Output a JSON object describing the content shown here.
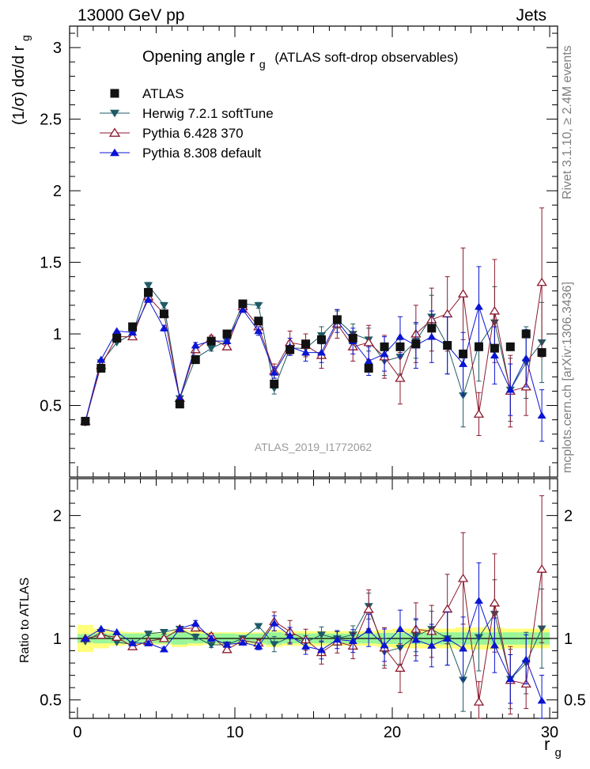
{
  "header": {
    "left": "13000 GeV pp",
    "right": "Jets",
    "side_top": "Rivet 3.1.10, ≥ 2.4M events",
    "side_bottom": "mcplots.cern.ch [arXiv:1306.3436]",
    "watermark": "ATLAS_2019_I1772062"
  },
  "chart_data": {
    "type": "scatter",
    "title_main": "Opening angle r",
    "title_sub": "g",
    "title_rest": "(ATLAS soft-drop observables)",
    "ylabel_main": "(1/σ) dσ/d r",
    "ylabel_sub": "g",
    "ratio_ylabel": "Ratio to ATLAS",
    "xlabel_main": "r",
    "xlabel_sub": "g",
    "xlim": [
      -0.5,
      30.5
    ],
    "ylim": [
      0,
      3.15
    ],
    "ratio_ylim": [
      0.35,
      2.3
    ],
    "x_ticks": [
      "0",
      "10",
      "20",
      "30"
    ],
    "y_ticks": [
      "0.5",
      "1",
      "1.5",
      "2",
      "2.5",
      "3"
    ],
    "ratio_ticks": [
      "0.5",
      "1",
      "2"
    ],
    "x": [
      0.5,
      1.5,
      2.5,
      3.5,
      4.5,
      5.5,
      6.5,
      7.5,
      8.5,
      9.5,
      10.5,
      11.5,
      12.5,
      13.5,
      14.5,
      15.5,
      16.5,
      17.5,
      18.5,
      19.5,
      20.5,
      21.5,
      22.5,
      23.5,
      24.5,
      25.5,
      26.5,
      27.5,
      28.5,
      29.5
    ],
    "data": {
      "name": "ATLAS",
      "values": [
        0.39,
        0.76,
        0.97,
        1.05,
        1.29,
        1.14,
        0.51,
        0.82,
        0.95,
        1.0,
        1.21,
        1.09,
        0.65,
        0.89,
        0.93,
        0.96,
        1.1,
        0.97,
        0.76,
        0.91,
        0.91,
        0.93,
        1.04,
        0.92,
        0.86,
        0.91,
        0.9,
        0.91,
        1.0,
        0.87
      ],
      "band_inner": [
        0.035,
        0.04,
        0.04,
        0.04,
        0.04,
        0.04,
        0.05,
        0.04,
        0.04,
        0.04,
        0.035,
        0.04,
        0.05,
        0.04,
        0.04,
        0.04,
        0.04,
        0.04,
        0.04,
        0.045,
        0.045,
        0.045,
        0.045,
        0.05,
        0.05,
        0.05,
        0.05,
        0.05,
        0.05,
        0.05
      ],
      "band_outer": [
        0.11,
        0.08,
        0.06,
        0.05,
        0.05,
        0.05,
        0.07,
        0.06,
        0.05,
        0.05,
        0.05,
        0.05,
        0.07,
        0.06,
        0.06,
        0.06,
        0.06,
        0.06,
        0.06,
        0.07,
        0.08,
        0.08,
        0.08,
        0.08,
        0.09,
        0.09,
        0.09,
        0.08,
        0.08,
        0.08
      ]
    },
    "series": [
      {
        "name": "Herwig 7.2.1 softTune",
        "color": "#1f5a66",
        "marker": "triangle-down",
        "values": [
          0.38,
          0.8,
          0.94,
          1.0,
          1.34,
          1.2,
          0.55,
          0.83,
          0.9,
          0.95,
          1.21,
          1.2,
          0.62,
          0.9,
          0.9,
          0.99,
          1.1,
          1.0,
          0.96,
          0.81,
          0.84,
          0.95,
          1.12,
          0.92,
          0.57,
          0.92,
          1.08,
          0.61,
          0.8,
          0.94
        ],
        "errors": [
          0.01,
          0.015,
          0.015,
          0.015,
          0.02,
          0.02,
          0.015,
          0.02,
          0.02,
          0.02,
          0.02,
          0.02,
          0.04,
          0.05,
          0.05,
          0.06,
          0.06,
          0.07,
          0.08,
          0.1,
          0.12,
          0.12,
          0.15,
          0.2,
          0.22,
          0.25,
          0.25,
          0.22,
          0.25,
          0.28
        ]
      },
      {
        "name": "Pythia 6.428 370",
        "color": "#8b1a2e",
        "marker": "triangle-up-open",
        "values": [
          0.39,
          0.78,
          0.98,
          0.98,
          1.26,
          1.14,
          0.55,
          0.89,
          0.97,
          0.91,
          1.19,
          1.05,
          0.74,
          0.94,
          0.92,
          0.85,
          1.07,
          0.91,
          0.94,
          0.84,
          0.69,
          1.0,
          1.1,
          1.14,
          1.28,
          0.44,
          1.16,
          0.6,
          0.63,
          1.36
        ],
        "errors": [
          0.01,
          0.015,
          0.015,
          0.015,
          0.02,
          0.02,
          0.015,
          0.02,
          0.02,
          0.02,
          0.02,
          0.03,
          0.05,
          0.08,
          0.08,
          0.09,
          0.1,
          0.1,
          0.12,
          0.15,
          0.18,
          0.2,
          0.22,
          0.26,
          0.32,
          0.15,
          0.36,
          0.25,
          0.2,
          0.52
        ]
      },
      {
        "name": "Pythia 8.308 default",
        "color": "#0a14d2",
        "marker": "triangle-up",
        "values": [
          0.39,
          0.82,
          1.02,
          1.01,
          1.24,
          1.04,
          0.55,
          0.92,
          0.95,
          0.95,
          1.17,
          1.02,
          0.73,
          0.91,
          0.87,
          0.87,
          1.09,
          0.95,
          0.81,
          0.86,
          0.98,
          0.92,
          0.98,
          0.92,
          0.79,
          1.19,
          0.85,
          0.61,
          0.83,
          0.43
        ],
        "errors": [
          0.01,
          0.015,
          0.015,
          0.015,
          0.02,
          0.02,
          0.015,
          0.02,
          0.02,
          0.02,
          0.02,
          0.03,
          0.04,
          0.06,
          0.06,
          0.07,
          0.08,
          0.09,
          0.1,
          0.12,
          0.14,
          0.16,
          0.18,
          0.2,
          0.22,
          0.28,
          0.2,
          0.18,
          0.2,
          0.18
        ]
      }
    ],
    "legend_placement": "top-left"
  }
}
